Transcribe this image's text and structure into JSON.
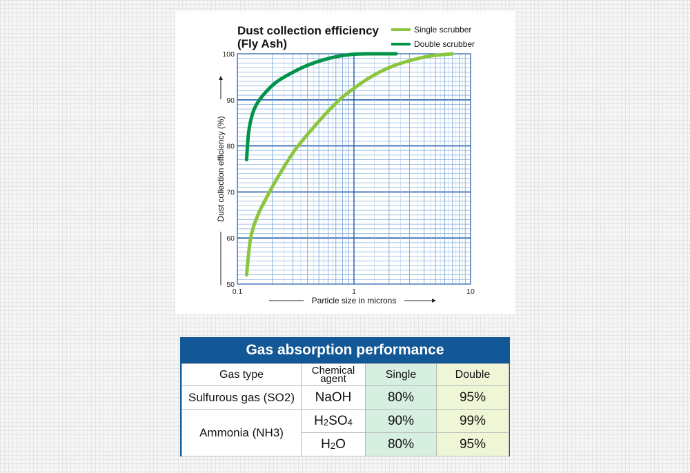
{
  "chart_data": {
    "type": "line",
    "title": "Dust collection efficiency",
    "subtitle": "(Fly Ash)",
    "xlabel": "Particle size in microns",
    "ylabel": "Dust collection efficiency (%)",
    "xscale": "log",
    "xlim": [
      0.1,
      10
    ],
    "ylim": [
      50,
      100
    ],
    "x_ticks": [
      "0.1",
      "1",
      "10"
    ],
    "y_ticks": [
      "50",
      "60",
      "70",
      "80",
      "90",
      "100"
    ],
    "grid": true,
    "legend_position": "top-right",
    "series": [
      {
        "name": "Single scrubber",
        "color": "#8cc63f",
        "x": [
          0.12,
          0.13,
          0.15,
          0.18,
          0.22,
          0.3,
          0.4,
          0.55,
          0.75,
          1.0,
          1.4,
          2.0,
          3.0,
          4.5,
          7.0
        ],
        "y": [
          52,
          60,
          65,
          69,
          73,
          78.5,
          82.5,
          86.5,
          90,
          92.5,
          95,
          97,
          98.5,
          99.5,
          100
        ]
      },
      {
        "name": "Double scrubber",
        "color": "#009448",
        "x": [
          0.12,
          0.125,
          0.135,
          0.15,
          0.18,
          0.22,
          0.3,
          0.4,
          0.55,
          0.75,
          1.0,
          1.4,
          2.0,
          2.3
        ],
        "y": [
          77,
          83,
          87,
          89.5,
          92,
          94,
          96,
          97.5,
          98.7,
          99.5,
          99.9,
          100,
          100,
          100
        ]
      }
    ]
  },
  "table": {
    "title": "Gas absorption performance",
    "headers": {
      "gas_type": "Gas type",
      "agent_line1": "Chemical",
      "agent_line2": "agent",
      "single": "Single",
      "double": "Double"
    },
    "rows": [
      {
        "gas": "Sulfurous gas (SO2)",
        "agent": "NaOH",
        "single": "80%",
        "double": "95%"
      },
      {
        "gas": "Ammonia (NH3)",
        "agent": {
          "p1": "H",
          "s1": "2",
          "p2": "SO",
          "s2": "4"
        },
        "single": "90%",
        "double": "99%"
      },
      {
        "agent": {
          "p1": "H",
          "s1": "2",
          "p2": "O"
        },
        "single": "80%",
        "double": "95%"
      }
    ]
  }
}
